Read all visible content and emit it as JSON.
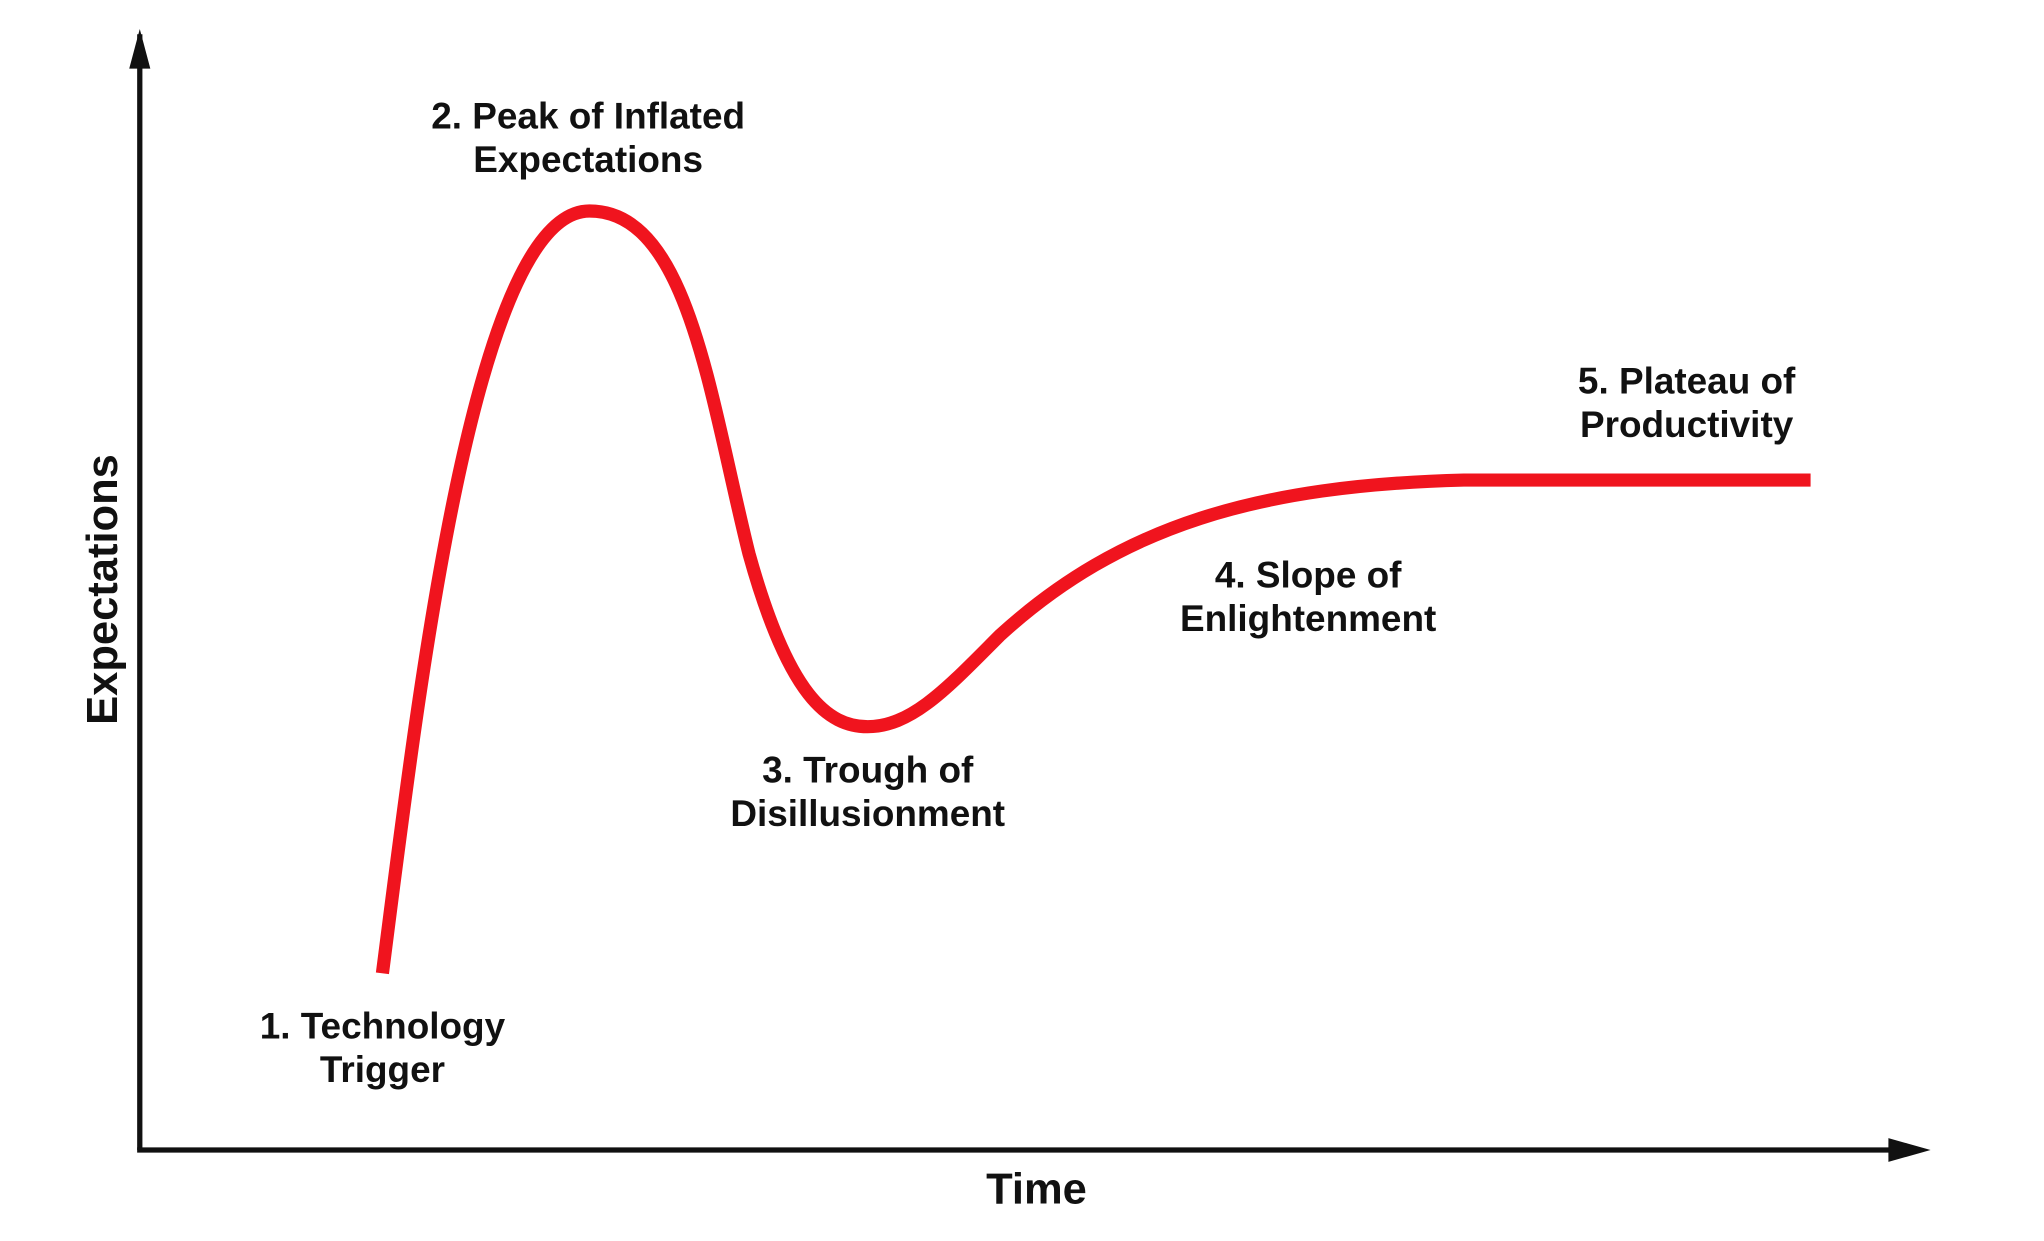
{
  "axes": {
    "y_label": "Expectations",
    "x_label": "Time"
  },
  "curve_color": "#f0141e",
  "phases": [
    {
      "line1": "1. Technology",
      "line2": "Trigger"
    },
    {
      "line1": "2. Peak of Inflated",
      "line2": "Expectations"
    },
    {
      "line1": "3. Trough of",
      "line2": "Disillusionment"
    },
    {
      "line1": "4. Slope of",
      "line2": "Enlightenment"
    },
    {
      "line1": "5. Plateau of",
      "line2": "Productivity"
    }
  ]
}
